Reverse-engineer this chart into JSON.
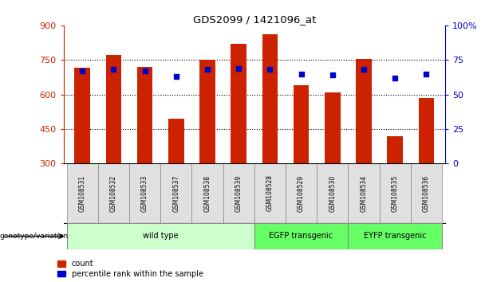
{
  "title": "GDS2099 / 1421096_at",
  "samples": [
    "GSM108531",
    "GSM108532",
    "GSM108533",
    "GSM108537",
    "GSM108538",
    "GSM108539",
    "GSM108528",
    "GSM108529",
    "GSM108530",
    "GSM108534",
    "GSM108535",
    "GSM108536"
  ],
  "bar_values": [
    715,
    770,
    720,
    495,
    750,
    820,
    860,
    640,
    610,
    755,
    420,
    585
  ],
  "percentile_values": [
    67,
    68,
    67,
    63,
    68,
    69,
    68,
    65,
    64,
    68,
    62,
    65
  ],
  "y_min": 300,
  "y_max": 900,
  "y_ticks": [
    300,
    450,
    600,
    750,
    900
  ],
  "y2_ticks": [
    0,
    25,
    50,
    75,
    100
  ],
  "bar_color": "#CC2200",
  "dot_color": "#0000CC",
  "groups": [
    {
      "label": "wild type",
      "start": 0,
      "end": 6,
      "color": "#CCFFCC"
    },
    {
      "label": "EGFP transgenic",
      "start": 6,
      "end": 9,
      "color": "#66FF66"
    },
    {
      "label": "EYFP transgenic",
      "start": 9,
      "end": 12,
      "color": "#66FF66"
    }
  ],
  "bar_width": 0.5,
  "bg_color": "white",
  "plot_bg": "white",
  "axis_color_left": "#CC2200",
  "axis_color_right": "#0000CC",
  "grid_color": "black",
  "gsm_bg": "#E0E0E0",
  "gsm_border": "#888888"
}
